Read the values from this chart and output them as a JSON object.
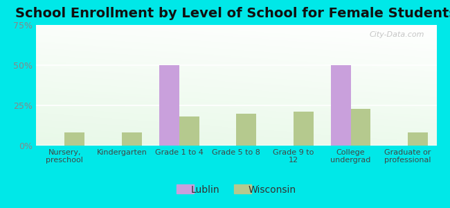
{
  "title": "School Enrollment by Level of School for Female Students",
  "categories": [
    "Nursery,\npreschool",
    "Kindergarten",
    "Grade 1 to 4",
    "Grade 5 to 8",
    "Grade 9 to\n12",
    "College\nundergrad",
    "Graduate or\nprofessional"
  ],
  "lublin": [
    0,
    0,
    50,
    0,
    0,
    50,
    0
  ],
  "wisconsin": [
    8,
    8,
    18,
    20,
    21,
    23,
    8
  ],
  "lublin_color": "#c9a0dc",
  "wisconsin_color": "#b5c98e",
  "background_fig": "#00e8e8",
  "ylim": [
    0,
    75
  ],
  "yticks": [
    0,
    25,
    50,
    75
  ],
  "ytick_labels": [
    "0%",
    "25%",
    "50%",
    "75%"
  ],
  "title_fontsize": 14,
  "bar_width": 0.35,
  "watermark": "City-Data.com"
}
